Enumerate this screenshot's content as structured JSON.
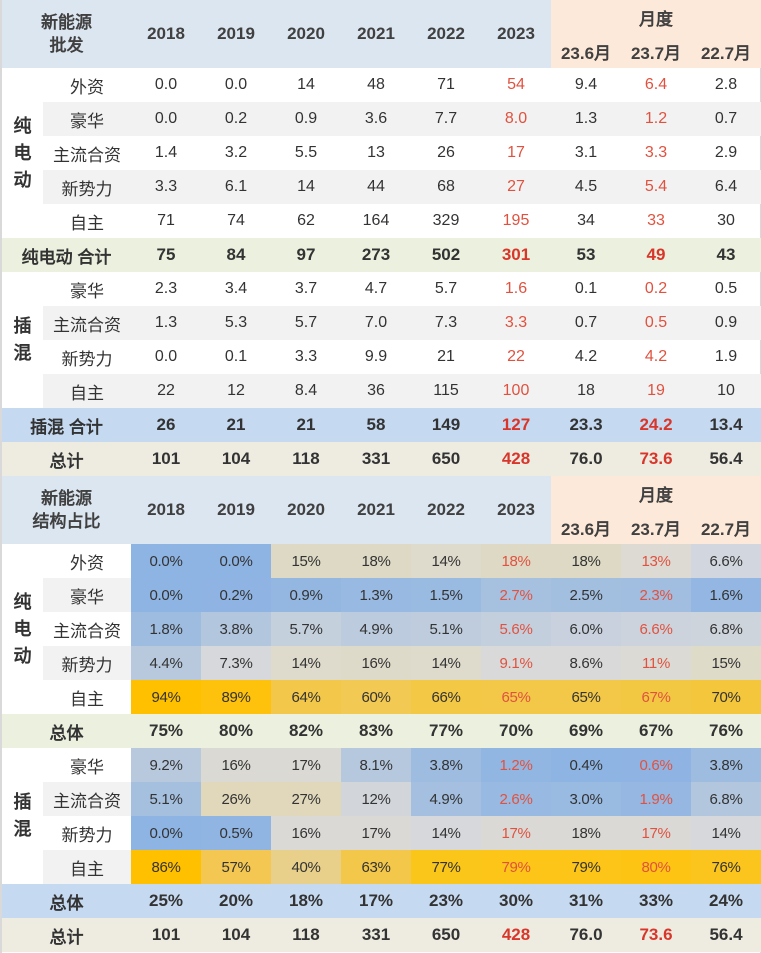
{
  "colors": {
    "accent_red": "#d9362b",
    "header_blue": "#dce6f1",
    "header_peach": "#fde9d9",
    "sum_green": "#ebf1de",
    "sum_blue": "#c5d9f1",
    "total_beige": "#eeece1"
  },
  "table1": {
    "title_line1": "新能源",
    "title_line2": "批发",
    "years": [
      "2018",
      "2019",
      "2020",
      "2021",
      "2022",
      "2023"
    ],
    "monthly_label": "月度",
    "months": [
      "23.6月",
      "23.7月",
      "22.7月"
    ],
    "bev_group": "纯电动",
    "bev_group_chars": [
      "纯",
      "电",
      "动"
    ],
    "bev_rows": [
      {
        "label": "外资",
        "values": [
          "0.0",
          "0.0",
          "14",
          "48",
          "71",
          "54",
          "9.4",
          "6.4",
          "2.8"
        ]
      },
      {
        "label": "豪华",
        "values": [
          "0.0",
          "0.2",
          "0.9",
          "3.6",
          "7.7",
          "8.0",
          "1.3",
          "1.2",
          "0.7"
        ]
      },
      {
        "label": "主流合资",
        "values": [
          "1.4",
          "3.2",
          "5.5",
          "13",
          "26",
          "17",
          "3.1",
          "3.3",
          "2.9"
        ]
      },
      {
        "label": "新势力",
        "values": [
          "3.3",
          "6.1",
          "14",
          "44",
          "68",
          "27",
          "4.5",
          "5.4",
          "6.4"
        ]
      },
      {
        "label": "自主",
        "values": [
          "71",
          "74",
          "62",
          "164",
          "329",
          "195",
          "34",
          "33",
          "30"
        ]
      }
    ],
    "bev_total": {
      "label": "纯电动 合计",
      "values": [
        "75",
        "84",
        "97",
        "273",
        "502",
        "301",
        "53",
        "49",
        "43"
      ]
    },
    "phev_group": "插混",
    "phev_group_chars": [
      "插",
      "混"
    ],
    "phev_rows": [
      {
        "label": "豪华",
        "values": [
          "2.3",
          "3.4",
          "3.7",
          "4.7",
          "5.7",
          "1.6",
          "0.1",
          "0.2",
          "0.5"
        ]
      },
      {
        "label": "主流合资",
        "values": [
          "1.3",
          "5.3",
          "5.7",
          "7.0",
          "7.3",
          "3.3",
          "0.7",
          "0.5",
          "0.9"
        ]
      },
      {
        "label": "新势力",
        "values": [
          "0.0",
          "0.1",
          "3.3",
          "9.9",
          "21",
          "22",
          "4.2",
          "4.2",
          "1.9"
        ]
      },
      {
        "label": "自主",
        "values": [
          "22",
          "12",
          "8.4",
          "36",
          "115",
          "100",
          "18",
          "19",
          "10"
        ]
      }
    ],
    "phev_total": {
      "label": "插混 合计",
      "values": [
        "26",
        "21",
        "21",
        "58",
        "149",
        "127",
        "23.3",
        "24.2",
        "13.4"
      ]
    },
    "grand_total": {
      "label": "总计",
      "values": [
        "101",
        "104",
        "118",
        "331",
        "650",
        "428",
        "76.0",
        "73.6",
        "56.4"
      ]
    }
  },
  "table2": {
    "title_line1": "新能源",
    "title_line2": "结构占比",
    "years": [
      "2018",
      "2019",
      "2020",
      "2021",
      "2022",
      "2023"
    ],
    "monthly_label": "月度",
    "months": [
      "23.6月",
      "23.7月",
      "22.7月"
    ],
    "bev_group_chars": [
      "纯",
      "电",
      "动"
    ],
    "bev_rows": [
      {
        "label": "外资",
        "values": [
          "0.0%",
          "0.0%",
          "15%",
          "18%",
          "14%",
          "18%",
          "18%",
          "13%",
          "6.6%"
        ],
        "bg": [
          "#8eb4e3",
          "#8eb4e3",
          "#ddd9c4",
          "#ddd9c4",
          "#dedbcc",
          "#ddd9c4",
          "#ddd9c4",
          "#dcdad3",
          "#d2d7df"
        ]
      },
      {
        "label": "豪华",
        "values": [
          "0.0%",
          "0.2%",
          "0.9%",
          "1.3%",
          "1.5%",
          "2.7%",
          "2.5%",
          "2.3%",
          "1.6%"
        ],
        "bg": [
          "#8eb4e3",
          "#8fb4e3",
          "#94b7e2",
          "#98b9e1",
          "#99bae1",
          "#a6c0df",
          "#a3bfe0",
          "#a1bde0",
          "#93b6e2"
        ]
      },
      {
        "label": "主流合资",
        "values": [
          "1.8%",
          "3.8%",
          "5.7%",
          "4.9%",
          "5.1%",
          "5.6%",
          "6.0%",
          "6.6%",
          "6.8%"
        ],
        "bg": [
          "#9ebce0",
          "#b2c6de",
          "#c5d0dd",
          "#bccbdd",
          "#bfccdd",
          "#c4cfdd",
          "#c8d1dd",
          "#ccd3dc",
          "#ced4dc"
        ]
      },
      {
        "label": "新势力",
        "values": [
          "4.4%",
          "7.3%",
          "14%",
          "16%",
          "14%",
          "9.1%",
          "8.6%",
          "11%",
          "15%"
        ],
        "bg": [
          "#b8c9de",
          "#d6d8db",
          "#dedbcc",
          "#dedac9",
          "#dedbcc",
          "#d9d9d9",
          "#d9d9d9",
          "#dbdad5",
          "#dedbc9"
        ]
      },
      {
        "label": "自主",
        "values": [
          "94%",
          "89%",
          "64%",
          "60%",
          "66%",
          "65%",
          "65%",
          "67%",
          "70%"
        ],
        "bg": [
          "#ffc000",
          "#fec20c",
          "#f3c84a",
          "#f2c952",
          "#f3c845",
          "#f3c848",
          "#f3c848",
          "#f2c843",
          "#f3c63b"
        ]
      }
    ],
    "bev_total": {
      "label": "总体",
      "values": [
        "75%",
        "80%",
        "82%",
        "83%",
        "77%",
        "70%",
        "69%",
        "67%",
        "76%"
      ]
    },
    "phev_group_chars": [
      "插",
      "混"
    ],
    "phev_rows": [
      {
        "label": "豪华",
        "values": [
          "9.2%",
          "16%",
          "17%",
          "8.1%",
          "3.8%",
          "1.2%",
          "0.4%",
          "0.6%",
          "3.8%"
        ],
        "bg": [
          "#b8c9de",
          "#dad9d4",
          "#dad9d4",
          "#b6c8de",
          "#9ebce0",
          "#92b6e2",
          "#8eb4e3",
          "#8fb4e3",
          "#9ebce0"
        ]
      },
      {
        "label": "主流合资",
        "values": [
          "5.1%",
          "26%",
          "27%",
          "12%",
          "4.9%",
          "2.6%",
          "3.0%",
          "1.9%",
          "6.8%"
        ],
        "bg": [
          "#a5bfdf",
          "#e1d8bb",
          "#e1d8bb",
          "#d2d6db",
          "#a4bfdf",
          "#98b9e1",
          "#99bae1",
          "#95b7e2",
          "#b2c6de"
        ]
      },
      {
        "label": "新势力",
        "values": [
          "0.0%",
          "0.5%",
          "16%",
          "17%",
          "14%",
          "17%",
          "18%",
          "17%",
          "14%"
        ],
        "bg": [
          "#8eb4e3",
          "#90b5e3",
          "#dad9d6",
          "#dad9d6",
          "#d6d8db",
          "#dad9d6",
          "#dad9d6",
          "#dad9d6",
          "#d6d8db"
        ]
      },
      {
        "label": "自主",
        "values": [
          "86%",
          "57%",
          "40%",
          "63%",
          "77%",
          "79%",
          "79%",
          "80%",
          "76%"
        ],
        "bg": [
          "#ffc000",
          "#f3c752",
          "#e8d08a",
          "#f3c84a",
          "#fac61a",
          "#fcc517",
          "#fcc517",
          "#fdc414",
          "#fbc51d"
        ]
      }
    ],
    "phev_total": {
      "label": "总体",
      "values": [
        "25%",
        "20%",
        "18%",
        "17%",
        "23%",
        "30%",
        "31%",
        "33%",
        "24%"
      ]
    },
    "grand_total": {
      "label": "总计",
      "values": [
        "101",
        "104",
        "118",
        "331",
        "650",
        "428",
        "76.0",
        "73.6",
        "56.4"
      ]
    }
  }
}
